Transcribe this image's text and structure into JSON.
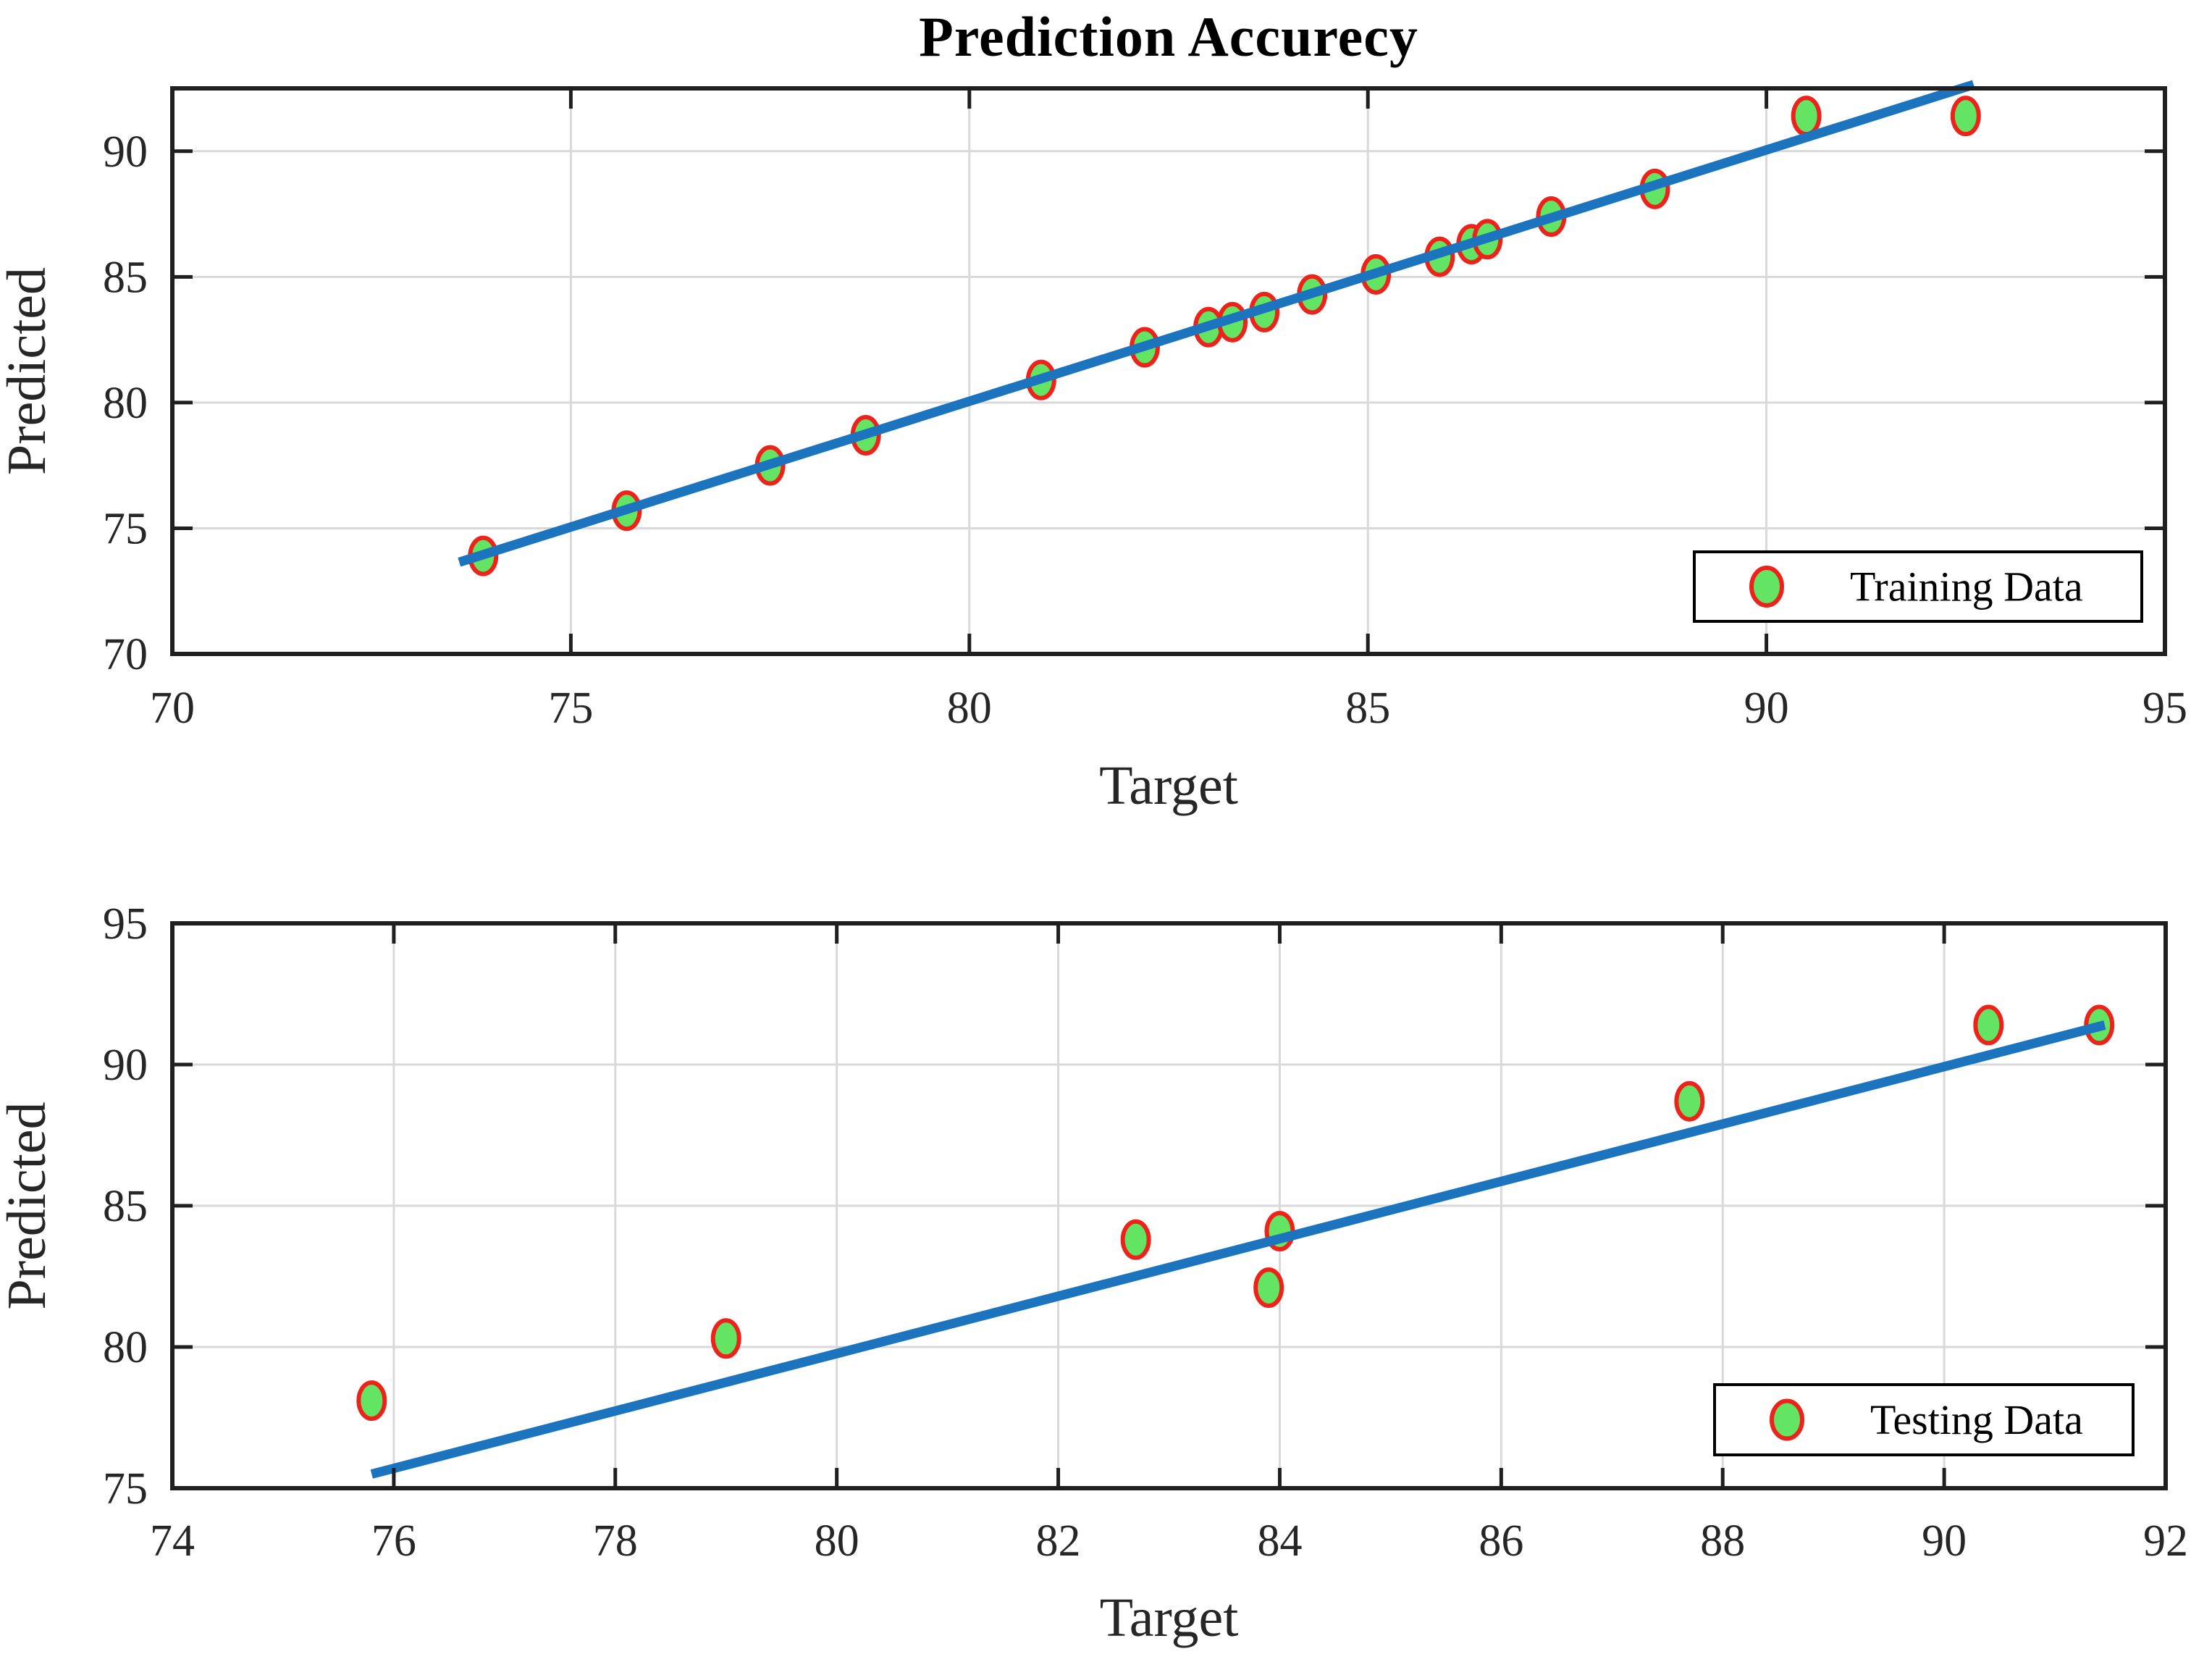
{
  "figure": {
    "title": "Prediction Accurecy"
  },
  "colors": {
    "marker_fill": "#63e463",
    "marker_edge": "#ed221b",
    "fit_line": "#1b74bd",
    "grid": "#d9d9d9",
    "axis": "#1f1f1f",
    "text": "#262626",
    "title_text": "#000000",
    "legend_bg": "#ffffff"
  },
  "chart_data": [
    {
      "type": "scatter",
      "name": "training-subplot",
      "xlabel": "Target",
      "ylabel": "Predicted",
      "xlim": [
        70,
        95
      ],
      "ylim": [
        70,
        92.5
      ],
      "xticks": [
        70,
        75,
        80,
        85,
        90,
        95
      ],
      "yticks": [
        70,
        75,
        80,
        85,
        90
      ],
      "grid": true,
      "legend": {
        "label": "Training Data",
        "position": "lower right"
      },
      "scatter_points": [
        [
          73.9,
          73.9
        ],
        [
          75.7,
          75.7
        ],
        [
          77.5,
          77.5
        ],
        [
          78.7,
          78.7
        ],
        [
          80.9,
          80.9
        ],
        [
          82.2,
          82.2
        ],
        [
          83.0,
          83.0
        ],
        [
          83.3,
          83.2
        ],
        [
          83.7,
          83.6
        ],
        [
          84.3,
          84.3
        ],
        [
          85.1,
          85.1
        ],
        [
          85.9,
          85.8
        ],
        [
          86.3,
          86.3
        ],
        [
          86.5,
          86.5
        ],
        [
          87.3,
          87.4
        ],
        [
          88.6,
          88.5
        ],
        [
          90.5,
          91.4
        ],
        [
          92.5,
          91.4
        ]
      ],
      "fit_line": [
        [
          73.6,
          73.65
        ],
        [
          92.6,
          92.65
        ]
      ]
    },
    {
      "type": "scatter",
      "name": "testing-subplot",
      "xlabel": "Target",
      "ylabel": "Predicted",
      "xlim": [
        74,
        92
      ],
      "ylim": [
        75,
        95
      ],
      "xticks": [
        74,
        76,
        78,
        80,
        82,
        84,
        86,
        88,
        90,
        92
      ],
      "yticks": [
        75,
        80,
        85,
        90,
        95
      ],
      "grid": true,
      "legend": {
        "label": "Testing Data",
        "position": "lower right"
      },
      "scatter_points": [
        [
          75.8,
          78.1
        ],
        [
          79.0,
          80.3
        ],
        [
          82.7,
          83.8
        ],
        [
          83.9,
          82.1
        ],
        [
          84.0,
          84.1
        ],
        [
          87.7,
          88.7
        ],
        [
          90.4,
          91.4
        ],
        [
          91.4,
          91.4
        ]
      ],
      "fit_line": [
        [
          75.8,
          75.5
        ],
        [
          91.45,
          91.4
        ]
      ]
    }
  ]
}
